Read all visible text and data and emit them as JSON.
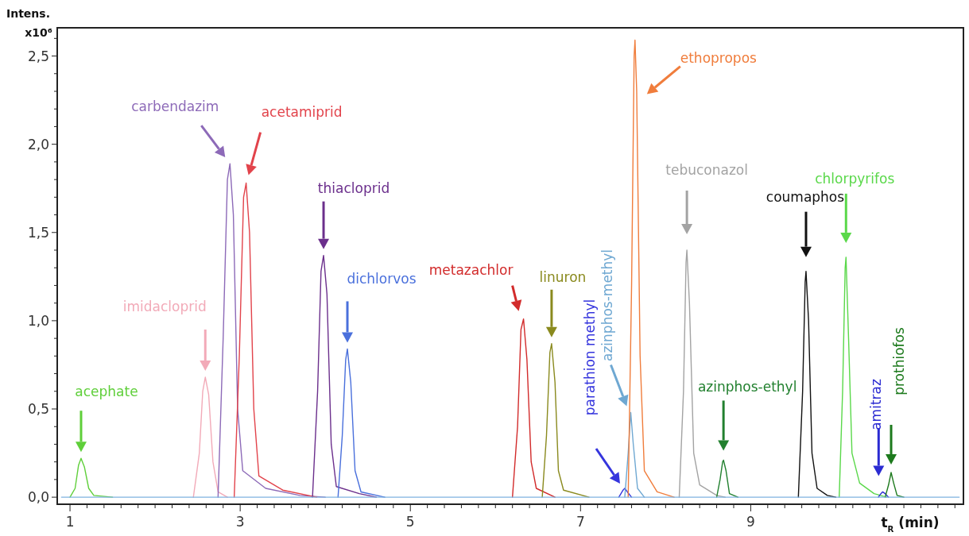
{
  "chart_data": {
    "type": "line",
    "xlabel": "t$_{R}$ (min)",
    "ylabel": "Intens. x10⁶",
    "xlim": [
      0.85,
      11.5
    ],
    "ylim": [
      -0.04,
      2.66
    ],
    "xticks": [
      1,
      {
        "value": 1.2,
        "label": null
      },
      {
        "value": 1.4,
        "label": null
      },
      {
        "value": 1.6,
        "label": null
      },
      {
        "value": 1.8,
        "label": null
      },
      {
        "value": 2,
        "label": null
      },
      {
        "value": 2.2,
        "label": null
      },
      {
        "value": 2.4,
        "label": null
      },
      {
        "value": 2.6,
        "label": null
      },
      {
        "value": 2.8,
        "label": null
      },
      3,
      {
        "value": 3.2,
        "label": null
      },
      {
        "value": 3.4,
        "label": null
      },
      {
        "value": 3.6,
        "label": null
      },
      {
        "value": 3.8,
        "label": null
      },
      {
        "value": 4,
        "label": null
      },
      {
        "value": 4.2,
        "label": null
      },
      {
        "value": 4.4,
        "label": null
      },
      {
        "value": 4.6,
        "label": null
      },
      {
        "value": 4.8,
        "label": null
      },
      5,
      {
        "value": 5.2,
        "label": null
      },
      {
        "value": 5.4,
        "label": null
      },
      {
        "value": 5.6,
        "label": null
      },
      {
        "value": 5.8,
        "label": null
      },
      {
        "value": 6,
        "label": null
      },
      {
        "value": 6.2,
        "label": null
      },
      {
        "value": 6.4,
        "label": null
      },
      {
        "value": 6.6,
        "label": null
      },
      {
        "value": 6.8,
        "label": null
      },
      7,
      {
        "value": 7.2,
        "label": null
      },
      {
        "value": 7.4,
        "label": null
      },
      {
        "value": 7.6,
        "label": null
      },
      {
        "value": 7.8,
        "label": null
      },
      {
        "value": 8,
        "label": null
      },
      {
        "value": 8.2,
        "label": null
      },
      {
        "value": 8.4,
        "label": null
      },
      {
        "value": 8.6,
        "label": null
      },
      {
        "value": 8.8,
        "label": null
      },
      9,
      {
        "value": 9.2,
        "label": null
      },
      {
        "value": 9.4,
        "label": null
      },
      {
        "value": 9.6,
        "label": null
      },
      {
        "value": 9.8,
        "label": null
      },
      {
        "value": 10,
        "label": null
      },
      {
        "value": 10.2,
        "label": null
      },
      {
        "value": 10.4,
        "label": null
      },
      {
        "value": 10.6,
        "label": null
      },
      {
        "value": 10.8,
        "label": null
      },
      {
        "value": 11,
        "label": null
      },
      {
        "value": 11.2,
        "label": null
      },
      {
        "value": 11.4,
        "label": null
      }
    ],
    "yticks": [
      {
        "value": 0,
        "label": "0,0"
      },
      {
        "value": 0.1,
        "label": null
      },
      {
        "value": 0.2,
        "label": null
      },
      {
        "value": 0.3,
        "label": null
      },
      {
        "value": 0.4,
        "label": null
      },
      {
        "value": 0.5,
        "label": "0,5"
      },
      {
        "value": 0.6,
        "label": null
      },
      {
        "value": 0.7,
        "label": null
      },
      {
        "value": 0.8,
        "label": null
      },
      {
        "value": 0.9,
        "label": null
      },
      {
        "value": 1,
        "label": "1,0"
      },
      {
        "value": 1.1,
        "label": null
      },
      {
        "value": 1.2,
        "label": null
      },
      {
        "value": 1.3,
        "label": null
      },
      {
        "value": 1.4,
        "label": null
      },
      {
        "value": 1.5,
        "label": "1,5"
      },
      {
        "value": 1.6,
        "label": null
      },
      {
        "value": 1.7,
        "label": null
      },
      {
        "value": 1.8,
        "label": null
      },
      {
        "value": 1.9,
        "label": null
      },
      {
        "value": 2,
        "label": "2,0"
      },
      {
        "value": 2.1,
        "label": null
      },
      {
        "value": 2.2,
        "label": null
      },
      {
        "value": 2.3,
        "label": null
      },
      {
        "value": 2.4,
        "label": null
      },
      {
        "value": 2.5,
        "label": "2,5"
      },
      {
        "value": 2.6,
        "label": null
      }
    ],
    "series": [
      {
        "name": "acephate",
        "color": "#5fcf3a",
        "x": [
          1.0,
          1.06,
          1.1,
          1.13,
          1.17,
          1.22,
          1.28,
          1.5
        ],
        "values": [
          0,
          0.05,
          0.18,
          0.22,
          0.17,
          0.05,
          0.01,
          0
        ]
      },
      {
        "name": "imidacloprid",
        "color": "#f2aab8",
        "x": [
          2.45,
          2.52,
          2.56,
          2.59,
          2.63,
          2.68,
          2.74,
          2.85
        ],
        "values": [
          0,
          0.25,
          0.6,
          0.68,
          0.58,
          0.2,
          0.03,
          0
        ]
      },
      {
        "name": "carbendazim",
        "color": "#8d6ab8",
        "x": [
          2.74,
          2.8,
          2.85,
          2.88,
          2.92,
          2.97,
          3.03,
          3.3,
          3.7,
          4.0
        ],
        "values": [
          0,
          0.9,
          1.8,
          1.89,
          1.6,
          0.5,
          0.15,
          0.05,
          0.01,
          0
        ]
      },
      {
        "name": "acetamiprid",
        "color": "#e2434b",
        "x": [
          2.93,
          2.99,
          3.04,
          3.07,
          3.11,
          3.16,
          3.22,
          3.5,
          3.9
        ],
        "values": [
          0,
          0.8,
          1.7,
          1.78,
          1.5,
          0.5,
          0.12,
          0.04,
          0
        ]
      },
      {
        "name": "thiacloprid",
        "color": "#6b2f8c",
        "x": [
          3.85,
          3.91,
          3.95,
          3.98,
          4.02,
          4.07,
          4.13,
          4.4,
          4.6
        ],
        "values": [
          0,
          0.6,
          1.28,
          1.37,
          1.15,
          0.3,
          0.06,
          0.02,
          0
        ]
      },
      {
        "name": "dichlorvos",
        "color": "#4a70dc",
        "x": [
          4.15,
          4.2,
          4.24,
          4.26,
          4.3,
          4.35,
          4.42,
          4.7
        ],
        "values": [
          0,
          0.35,
          0.78,
          0.84,
          0.65,
          0.15,
          0.03,
          0
        ]
      },
      {
        "name": "metazachlor",
        "color": "#d22b2b",
        "x": [
          6.2,
          6.26,
          6.3,
          6.33,
          6.37,
          6.42,
          6.48,
          6.7
        ],
        "values": [
          0,
          0.4,
          0.95,
          1.01,
          0.78,
          0.2,
          0.05,
          0
        ]
      },
      {
        "name": "linuron",
        "color": "#8a8a1e",
        "x": [
          6.55,
          6.6,
          6.64,
          6.66,
          6.7,
          6.74,
          6.8,
          7.1
        ],
        "values": [
          0,
          0.35,
          0.82,
          0.87,
          0.65,
          0.15,
          0.04,
          0
        ]
      },
      {
        "name": "parathion methyl",
        "color": "#3535dd",
        "x": [
          7.45,
          7.5,
          7.52,
          7.55,
          7.6
        ],
        "values": [
          0,
          0.04,
          0.05,
          0.03,
          0
        ]
      },
      {
        "name": "azinphos-methyl",
        "color": "#6fa8d2",
        "x": [
          7.52,
          7.56,
          7.59,
          7.62,
          7.67,
          7.75
        ],
        "values": [
          0,
          0.25,
          0.48,
          0.3,
          0.05,
          0
        ]
      },
      {
        "name": "ethopropos",
        "color": "#f07d3c",
        "x": [
          7.56,
          7.6,
          7.63,
          7.64,
          7.66,
          7.7,
          7.75,
          7.9,
          8.1
        ],
        "values": [
          0,
          1.2,
          2.5,
          2.59,
          2.3,
          0.8,
          0.15,
          0.03,
          0
        ]
      },
      {
        "name": "tebuconazol",
        "color": "#a3a3a3",
        "x": [
          8.16,
          8.21,
          8.24,
          8.25,
          8.28,
          8.33,
          8.4,
          8.6,
          8.7
        ],
        "values": [
          0,
          0.6,
          1.33,
          1.4,
          1.1,
          0.25,
          0.07,
          0.01,
          0
        ]
      },
      {
        "name": "azinphos-ethyl",
        "color": "#22802f",
        "x": [
          8.6,
          8.64,
          8.67,
          8.68,
          8.71,
          8.75,
          8.85
        ],
        "values": [
          0,
          0.1,
          0.2,
          0.21,
          0.15,
          0.02,
          0
        ]
      },
      {
        "name": "coumaphos",
        "color": "#111111",
        "x": [
          9.56,
          9.61,
          9.64,
          9.65,
          9.68,
          9.72,
          9.78,
          9.9,
          10.0
        ],
        "values": [
          0,
          0.6,
          1.22,
          1.28,
          1.0,
          0.25,
          0.05,
          0.01,
          0
        ]
      },
      {
        "name": "chlorpyrifos",
        "color": "#5ad84a",
        "x": [
          10.04,
          10.08,
          10.11,
          10.12,
          10.15,
          10.19,
          10.28,
          10.45,
          10.6
        ],
        "values": [
          0,
          0.6,
          1.3,
          1.36,
          0.9,
          0.25,
          0.08,
          0.02,
          0
        ]
      },
      {
        "name": "amitraz",
        "color": "#2b2bd2",
        "x": [
          10.5,
          10.53,
          10.55,
          10.58,
          10.62
        ],
        "values": [
          0,
          0.02,
          0.03,
          0.02,
          0
        ]
      },
      {
        "name": "prothiofos",
        "color": "#1d7a1d",
        "x": [
          10.58,
          10.62,
          10.65,
          10.68,
          10.72,
          10.8
        ],
        "values": [
          0,
          0.07,
          0.14,
          0.08,
          0.01,
          0
        ]
      },
      {
        "color": "#7fb2e0",
        "x": [
          0.9,
          11.45
        ],
        "values": [
          0,
          0
        ]
      }
    ]
  }
}
